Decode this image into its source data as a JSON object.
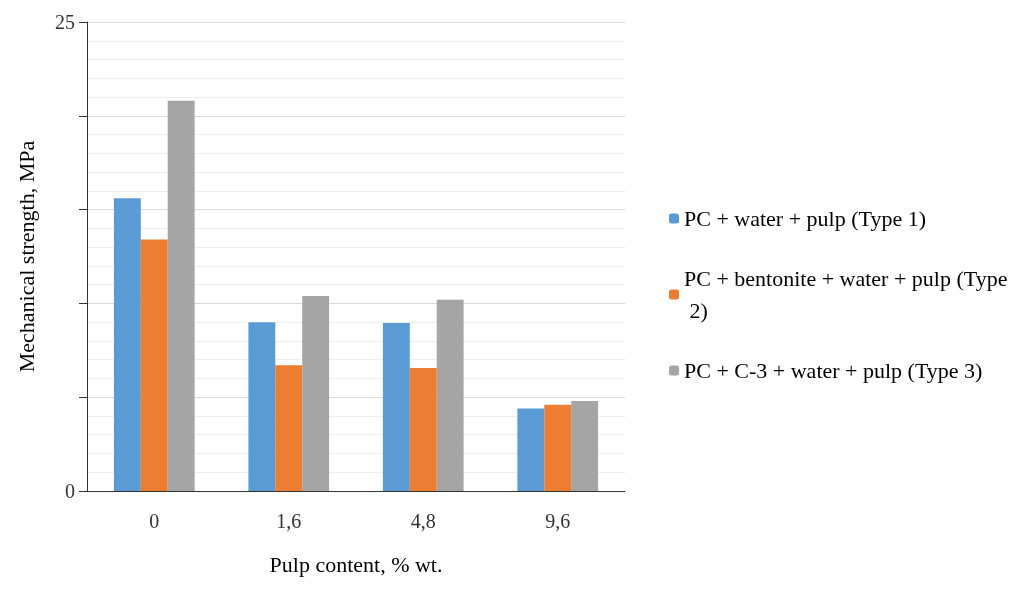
{
  "chart_data": {
    "type": "bar",
    "xlabel": "Pulp content, % wt.",
    "ylabel": "Mechanical strength, MPa",
    "categories": [
      "0",
      "1,6",
      "4,8",
      "9,6"
    ],
    "series": [
      {
        "name": "PC + water + pulp (Type 1)",
        "color": "#5b9bd5",
        "values": [
          15.6,
          9.0,
          8.95,
          4.4
        ]
      },
      {
        "name": "PC + bentonite + water + pulp (Type 2)",
        "color": "#ed7d31",
        "values": [
          13.4,
          6.7,
          6.55,
          4.6
        ]
      },
      {
        "name": "PC + C-3 + water + pulp (Type 3)",
        "color": "#a5a5a5",
        "values": [
          20.8,
          10.4,
          10.2,
          4.8
        ]
      }
    ],
    "ylim": [
      0,
      25
    ],
    "yticks": [
      0,
      {
        "value": 5,
        "label": null
      },
      {
        "value": 10,
        "label": null
      },
      {
        "value": 15,
        "label": null
      },
      {
        "value": 20,
        "label": null
      },
      25
    ],
    "grid": true,
    "legend": "right"
  }
}
